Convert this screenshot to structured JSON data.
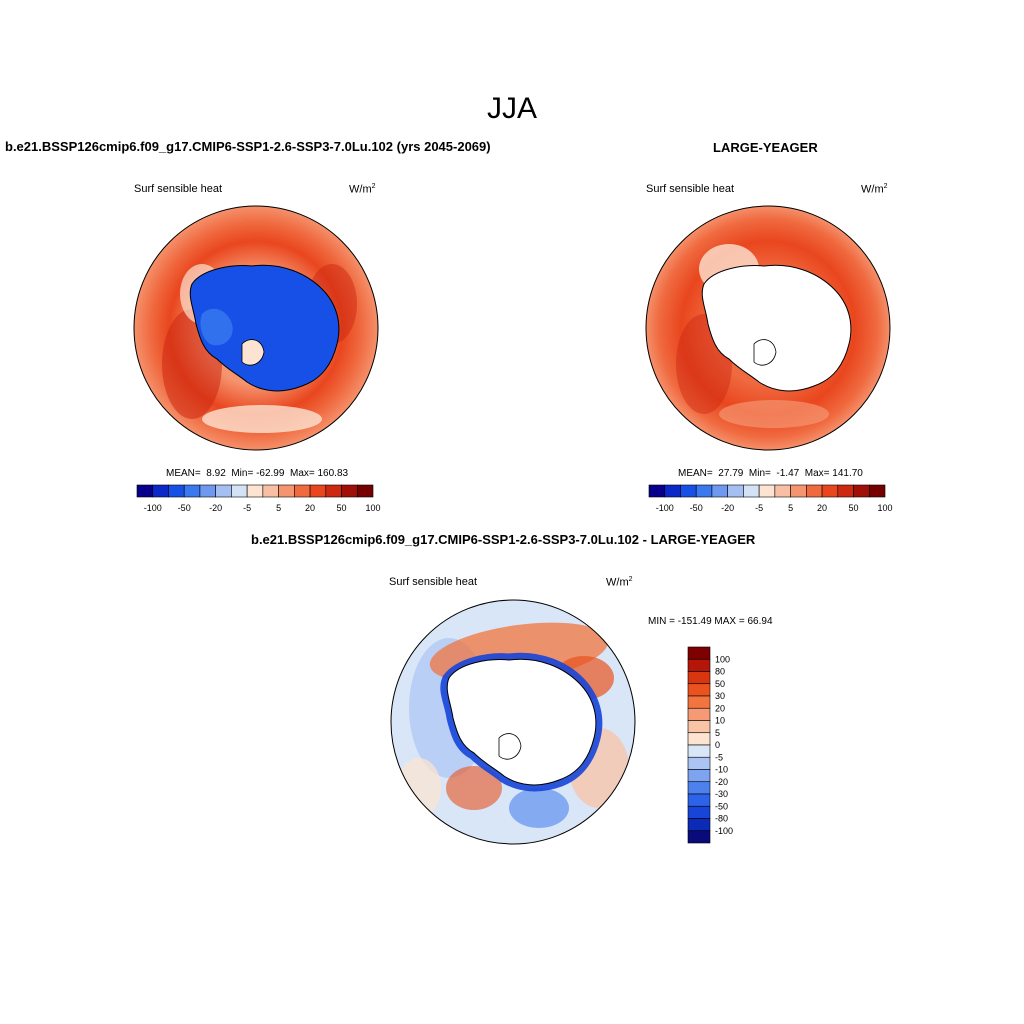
{
  "season": "JJA",
  "colors": [
    "#08008a",
    "#0a29c8",
    "#1650e6",
    "#3a79ef",
    "#6f99f1",
    "#a4bff2",
    "#d4e2f6",
    "#fde3d2",
    "#f9bfa4",
    "#f59570",
    "#f06a40",
    "#e9461e",
    "#cc2812",
    "#a01008",
    "#760000"
  ],
  "colors_diff": [
    "#0a0a7a",
    "#0b2ab8",
    "#1645d8",
    "#2c63e8",
    "#4d82ee",
    "#7ea3f1",
    "#acc4f4",
    "#d8e6f8",
    "#fde4d0",
    "#f9c3a5",
    "#f69a76",
    "#f2753f",
    "#ea5320",
    "#d7360f",
    "#b4170a",
    "#7f0000"
  ],
  "panels": [
    {
      "title": "b.e21.BSSP126cmip6.f09_g17.CMIP6-SSP1-2.6-SSP3-7.0Lu.102 (yrs 2045-2069)",
      "variable": "Surf sensible heat",
      "units_base": "W/m",
      "units_exp": "2",
      "stats": {
        "mean_label": "MEAN=",
        "mean": "8.92",
        "min_label": "Min=",
        "min": "-62.99",
        "max_label": "Max=",
        "max": "160.83"
      },
      "colorbar_labels": [
        "-100",
        "-50",
        "-20",
        "-5",
        "5",
        "20",
        "50",
        "100"
      ]
    },
    {
      "title": "LARGE-YEAGER",
      "variable": "Surf sensible heat",
      "units_base": "W/m",
      "units_exp": "2",
      "stats": {
        "mean_label": "MEAN=",
        "mean": "27.79",
        "min_label": "Min=",
        "min": "-1.47",
        "max_label": "Max=",
        "max": "141.70"
      },
      "colorbar_labels": [
        "-100",
        "-50",
        "-20",
        "-5",
        "5",
        "20",
        "50",
        "100"
      ]
    }
  ],
  "diff_panel": {
    "title": "b.e21.BSSP126cmip6.f09_g17.CMIP6-SSP1-2.6-SSP3-7.0Lu.102 - LARGE-YEAGER",
    "variable": "Surf sensible heat",
    "units_base": "W/m",
    "units_exp": "2",
    "minmax": "MIN = -151.49 MAX =  66.94",
    "colorbar_labels": [
      "100",
      "80",
      "50",
      "30",
      "20",
      "10",
      "5",
      "0",
      "-5",
      "-10",
      "-20",
      "-30",
      "-50",
      "-80",
      "-100"
    ]
  }
}
